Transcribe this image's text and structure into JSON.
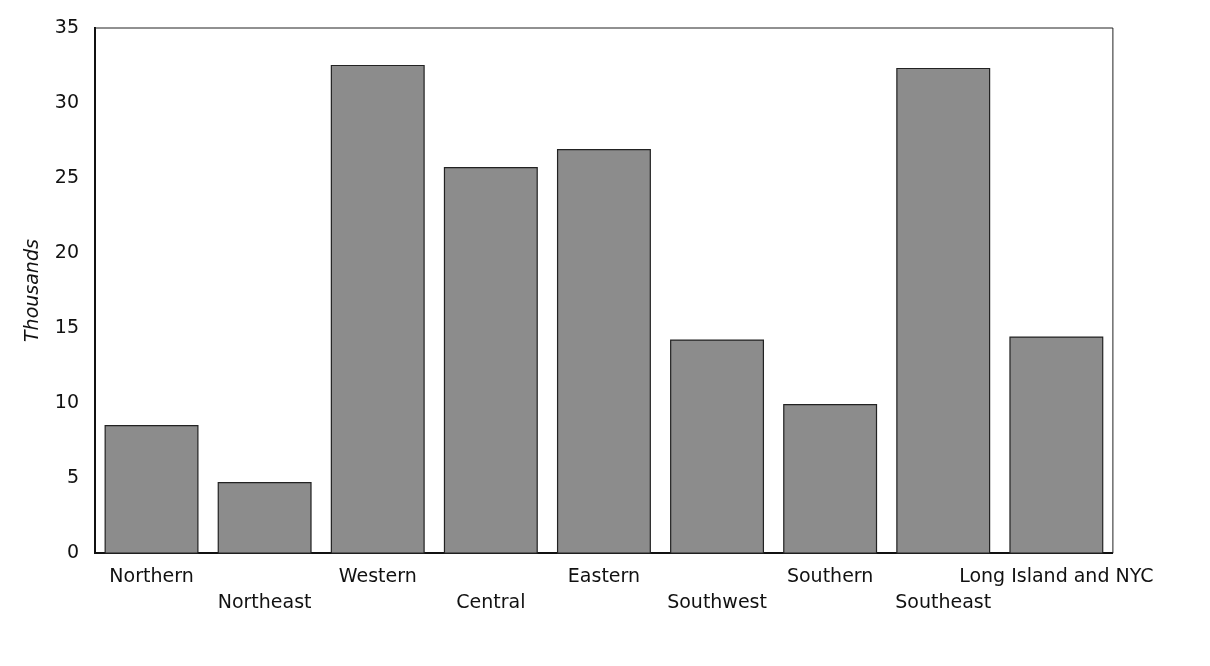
{
  "chart_data": {
    "type": "bar",
    "ylabel": "Thousands",
    "categories": [
      "Northern",
      "Northeast",
      "Western",
      "Central",
      "Eastern",
      "Southwest",
      "Southern",
      "Southeast",
      "Long Island and NYC"
    ],
    "values": [
      8.5,
      4.7,
      32.5,
      25.7,
      26.9,
      14.2,
      9.9,
      32.3,
      14.4
    ],
    "color": "#8c8c8c",
    "ylim": [
      0,
      35
    ],
    "yticks": [
      0,
      5,
      10,
      15,
      20,
      25,
      30,
      35
    ],
    "grid": false,
    "legend": false
  }
}
